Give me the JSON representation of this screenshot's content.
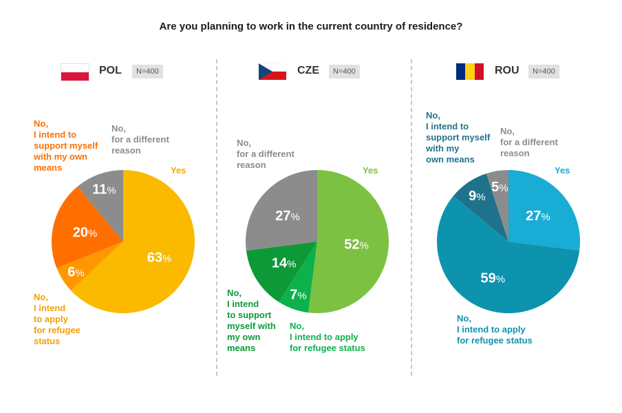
{
  "title": "Are you planning to work in the current country of residence?",
  "colors": {
    "yes_pol": "#FBB900",
    "support_pol": "#FF6F00",
    "refugee_pol": "#FF9800",
    "different": "#8C8C8C",
    "yes_cze": "#7DC143",
    "refugee_cze": "#0CB14B",
    "support_cze": "#0E9938",
    "yes_rou": "#19ACD4",
    "refugee_rou": "#0D93AE",
    "support_rou": "#1E728C"
  },
  "chart_data": [
    {
      "type": "pie",
      "country": "POL",
      "n": "N=400",
      "flag": "poland-flag",
      "slices": [
        {
          "label": "Yes",
          "value": 63,
          "display": "63",
          "color": "#FBB900"
        },
        {
          "label": "No, I intend to apply for refugee status",
          "value": 6,
          "display": "6",
          "color": "#FF9800"
        },
        {
          "label": "No, I intend to support myself with my own means",
          "value": 20,
          "display": "20",
          "color": "#FF6F00"
        },
        {
          "label": "No, for a different reason",
          "value": 11,
          "display": "11",
          "color": "#8C8C8C"
        }
      ],
      "labels": {
        "yes": "Yes",
        "refugee": "No,\nI intend\nto apply\nfor refugee\nstatus",
        "support": "No,\nI intend to\nsupport myself\nwith my own\nmeans",
        "different": "No,\nfor a different\nreason"
      }
    },
    {
      "type": "pie",
      "country": "CZE",
      "n": "N=400",
      "flag": "czech-flag",
      "slices": [
        {
          "label": "Yes",
          "value": 52,
          "display": "52",
          "color": "#7DC143"
        },
        {
          "label": "No, I intend to apply for refugee status",
          "value": 7,
          "display": "7",
          "color": "#0CB14B"
        },
        {
          "label": "No, I intend to support myself with my own means",
          "value": 14,
          "display": "14",
          "color": "#0E9938"
        },
        {
          "label": "No, for a different reason",
          "value": 27,
          "display": "27",
          "color": "#8C8C8C"
        }
      ],
      "labels": {
        "yes": "Yes",
        "refugee": "No,\nI intend to apply\nfor refugee status",
        "support": "No,\nI intend\nto support\nmyself with\nmy own\nmeans",
        "different": "No,\nfor a different\nreason"
      }
    },
    {
      "type": "pie",
      "country": "ROU",
      "n": "N=400",
      "flag": "romania-flag",
      "slices": [
        {
          "label": "Yes",
          "value": 27,
          "display": "27",
          "color": "#19ACD4"
        },
        {
          "label": "No, I intend to apply for refugee status",
          "value": 59,
          "display": "59",
          "color": "#0D93AE"
        },
        {
          "label": "No, I intend to support myself with my own means",
          "value": 9,
          "display": "9",
          "color": "#1E728C"
        },
        {
          "label": "No, for a different reason",
          "value": 5,
          "display": "5",
          "color": "#8C8C8C"
        }
      ],
      "labels": {
        "yes": "Yes",
        "refugee": "No,\nI intend to apply\nfor refugee status",
        "support": "No,\nI intend to\nsupport myself\nwith my\nown means",
        "different": "No,\nfor a different\nreason"
      }
    }
  ]
}
